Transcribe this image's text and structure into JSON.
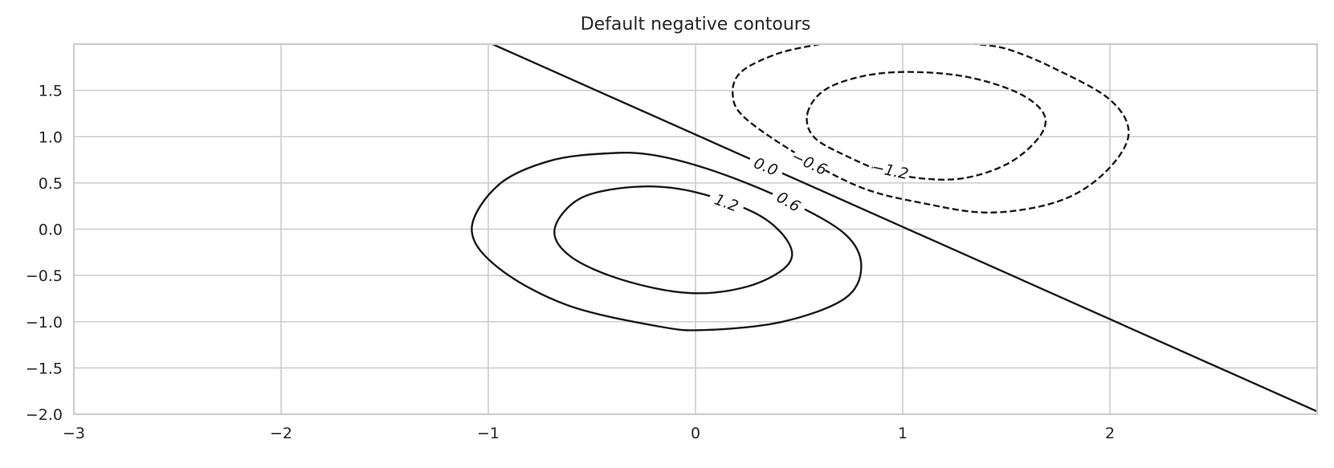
{
  "chart_data": {
    "type": "contour",
    "title": "Default negative contours",
    "xlabel": "",
    "ylabel": "",
    "xlim": [
      -3,
      3
    ],
    "ylim": [
      -2,
      2
    ],
    "x_ticks": [
      -3,
      -2,
      -1,
      0,
      1,
      2
    ],
    "x_tick_labels": [
      "−3",
      "−2",
      "−1",
      "0",
      "1",
      "2"
    ],
    "y_ticks": [
      -2.0,
      -1.5,
      -1.0,
      -0.5,
      0.0,
      0.5,
      1.0,
      1.5
    ],
    "y_tick_labels": [
      "−2.0",
      "−1.5",
      "−1.0",
      "−0.5",
      "0.0",
      "0.5",
      "1.0",
      "1.5"
    ],
    "grid": true,
    "line_color": "#1a1a1a",
    "grid_color": "#cccccc",
    "contour_levels": [
      {
        "level": -1.2,
        "label": "−1.2",
        "linestyle": "dashed",
        "label_at": [
          0.94,
          0.64
        ],
        "label_angle": 12,
        "points": [
          [
            0.54,
            1.25
          ],
          [
            0.62,
            1.5
          ],
          [
            0.8,
            1.65
          ],
          [
            1.02,
            1.7
          ],
          [
            1.3,
            1.65
          ],
          [
            1.55,
            1.48
          ],
          [
            1.68,
            1.25
          ],
          [
            1.66,
            1.0
          ],
          [
            1.5,
            0.7
          ],
          [
            1.25,
            0.54
          ],
          [
            0.95,
            0.6
          ],
          [
            0.72,
            0.8
          ],
          [
            0.57,
            1.0
          ],
          [
            0.54,
            1.25
          ]
        ]
      },
      {
        "level": -0.6,
        "label": "−0.6",
        "linestyle": "dashed",
        "label_at": [
          0.55,
          0.72
        ],
        "label_angle": 25,
        "points": [
          [
            0.6,
            2.0
          ],
          [
            0.4,
            1.9
          ],
          [
            0.22,
            1.7
          ],
          [
            0.18,
            1.45
          ],
          [
            0.24,
            1.2
          ],
          [
            0.5,
            0.8
          ],
          [
            0.8,
            0.45
          ],
          [
            1.1,
            0.28
          ],
          [
            1.42,
            0.18
          ],
          [
            1.75,
            0.3
          ],
          [
            1.97,
            0.6
          ],
          [
            2.09,
            1.02
          ],
          [
            2.0,
            1.4
          ],
          [
            1.72,
            1.75
          ],
          [
            1.5,
            1.95
          ],
          [
            1.35,
            2.0
          ]
        ]
      },
      {
        "level": 0.0,
        "label": "0.0",
        "linestyle": "solid",
        "label_at": [
          0.34,
          0.68
        ],
        "label_angle": 22,
        "points": [
          [
            -0.98,
            2.0
          ],
          [
            3.0,
            -1.97
          ]
        ]
      },
      {
        "level": 0.6,
        "label": "0.6",
        "linestyle": "solid",
        "label_at": [
          0.45,
          0.3
        ],
        "label_angle": 30,
        "points": [
          [
            -0.42,
            0.82
          ],
          [
            -0.7,
            0.74
          ],
          [
            -0.95,
            0.48
          ],
          [
            -1.08,
            0.0
          ],
          [
            -0.95,
            -0.42
          ],
          [
            -0.62,
            -0.82
          ],
          [
            -0.18,
            -1.05
          ],
          [
            0.05,
            -1.09
          ],
          [
            0.42,
            -1.0
          ],
          [
            0.72,
            -0.75
          ],
          [
            0.8,
            -0.4
          ],
          [
            0.72,
            -0.05
          ],
          [
            0.45,
            0.3
          ],
          [
            0.1,
            0.62
          ],
          [
            -0.2,
            0.8
          ],
          [
            -0.42,
            0.82
          ]
        ]
      },
      {
        "level": 1.2,
        "label": "1.2",
        "linestyle": "solid",
        "label_at": [
          0.15,
          0.29
        ],
        "label_angle": 20,
        "points": [
          [
            -0.27,
            0.46
          ],
          [
            -0.55,
            0.34
          ],
          [
            -0.68,
            0.0
          ],
          [
            -0.6,
            -0.3
          ],
          [
            -0.35,
            -0.55
          ],
          [
            -0.03,
            -0.69
          ],
          [
            0.25,
            -0.62
          ],
          [
            0.44,
            -0.4
          ],
          [
            0.45,
            -0.15
          ],
          [
            0.3,
            0.16
          ],
          [
            0.0,
            0.4
          ],
          [
            -0.27,
            0.46
          ]
        ]
      }
    ]
  }
}
